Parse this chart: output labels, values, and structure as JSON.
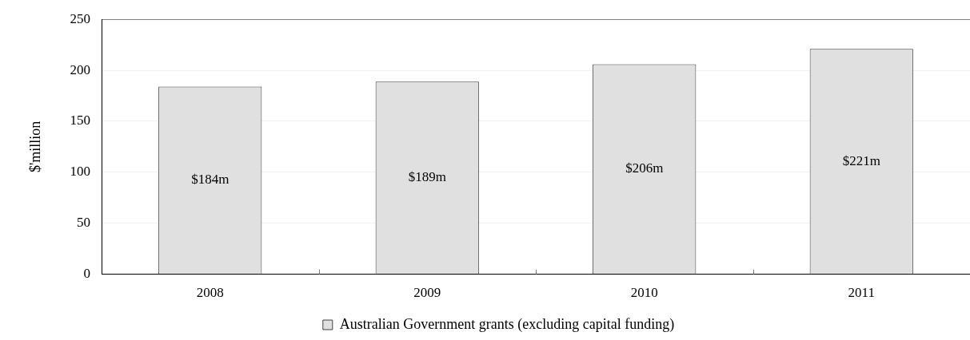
{
  "chart_data": {
    "type": "bar",
    "categories": [
      "2008",
      "2009",
      "2010",
      "2011"
    ],
    "series": [
      {
        "name": "Australian Government grants (excluding capital funding)",
        "color": "#e0e0e0",
        "values": [
          184,
          189,
          206,
          221
        ],
        "value_labels": [
          "$184m",
          "$189m",
          "$206m",
          "$221m"
        ]
      }
    ],
    "ylabel": "$'million",
    "ylim": [
      0,
      250
    ],
    "yticks": [
      0,
      50,
      100,
      150,
      200,
      250
    ],
    "grid": "y",
    "legend": "bottom"
  }
}
